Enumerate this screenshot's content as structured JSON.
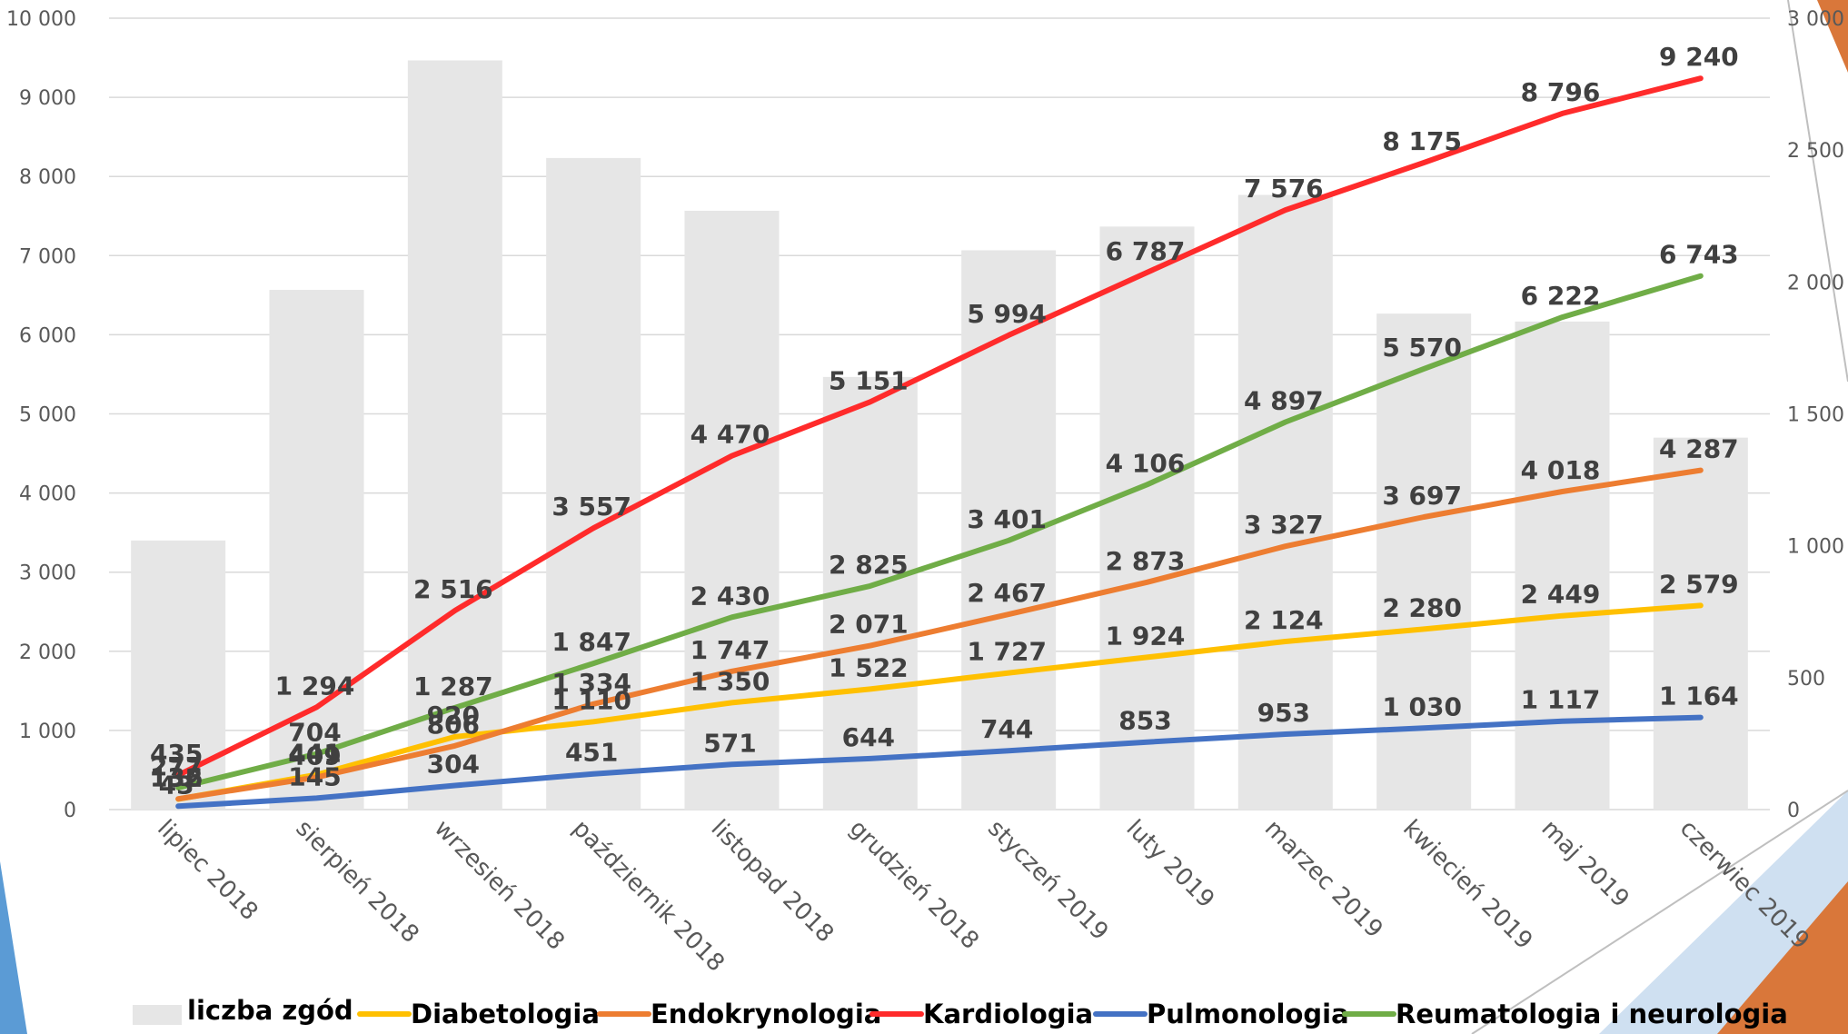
{
  "chart_data": {
    "type": "bar",
    "categories": [
      "lipiec 2018",
      "sierpień 2018",
      "wrzesień 2018",
      "październik 2018",
      "listopad 2018",
      "grudzień 2018",
      "styczeń 2019",
      "luty 2019",
      "marzec 2019",
      "kwiecień 2019",
      "maj 2019",
      "czerwiec 2019"
    ],
    "left_axis": {
      "min": 0,
      "max": 10000,
      "step": 1000,
      "tick_labels": [
        "0",
        "1 000",
        "2 000",
        "3 000",
        "4 000",
        "5 000",
        "6 000",
        "7 000",
        "8 000",
        "9 000",
        "10 000"
      ]
    },
    "right_axis": {
      "min": 0,
      "max": 3000,
      "step": 500,
      "tick_labels": [
        "0",
        "500",
        "1 000",
        "1 500",
        "2 000",
        "2 500",
        "3 000"
      ]
    },
    "grid": true,
    "legend_position": "bottom",
    "series": [
      {
        "name": "liczba zgód",
        "kind": "bar",
        "axis": "right",
        "color": "#e6e6e6",
        "values": [
          1020,
          1970,
          2840,
          2470,
          2270,
          1640,
          2120,
          2210,
          2330,
          1880,
          1850,
          1410
        ],
        "labels": []
      },
      {
        "name": "Diabetologia",
        "kind": "line",
        "axis": "left",
        "color": "#ffc000",
        "values": [
          132,
          441,
          920,
          1110,
          1350,
          1522,
          1727,
          1924,
          2124,
          2280,
          2449,
          2579
        ],
        "labels": [
          "132",
          "441",
          "920",
          "1 110",
          "1 350",
          "1 522",
          "1 727",
          "1 924",
          "2 124",
          "2 280",
          "2 449",
          "2 579"
        ]
      },
      {
        "name": "Endokrynologia",
        "kind": "line",
        "axis": "left",
        "color": "#ed7d31",
        "values": [
          136,
          409,
          806,
          1334,
          1747,
          2071,
          2467,
          2873,
          3327,
          3697,
          4018,
          4287
        ],
        "labels": [
          "136",
          "409",
          "806",
          "1 334",
          "1 747",
          "2 071",
          "2 467",
          "2 873",
          "3 327",
          "3 697",
          "4 018",
          "4 287"
        ]
      },
      {
        "name": "Kardiologia",
        "kind": "line",
        "axis": "left",
        "color": "#ff2b2b",
        "values": [
          435,
          1294,
          2516,
          3557,
          4470,
          5151,
          5994,
          6787,
          7576,
          8175,
          8796,
          9240
        ],
        "labels": [
          "435",
          "1 294",
          "2 516",
          "3 557",
          "4 470",
          "5 151",
          "5 994",
          "6 787",
          "7 576",
          "8 175",
          "8 796",
          "9 240"
        ]
      },
      {
        "name": "Pulmonologia",
        "kind": "line",
        "axis": "left",
        "color": "#4472c4",
        "values": [
          43,
          145,
          304,
          451,
          571,
          644,
          744,
          853,
          953,
          1030,
          1117,
          1164
        ],
        "labels": [
          "43",
          "145",
          "304",
          "451",
          "571",
          "644",
          "744",
          "853",
          "953",
          "1 030",
          "1 117",
          "1 164"
        ]
      },
      {
        "name": "Reumatologia i neurologia",
        "kind": "line",
        "axis": "left",
        "color": "#70ad47",
        "values": [
          277,
          704,
          1287,
          1847,
          2430,
          2825,
          3401,
          4106,
          4897,
          5570,
          6222,
          6743
        ],
        "labels": [
          "277",
          "704",
          "1 287",
          "1 847",
          "2 430",
          "2 825",
          "3 401",
          "4 106",
          "4 897",
          "5 570",
          "6 222",
          "6 743"
        ]
      }
    ]
  }
}
